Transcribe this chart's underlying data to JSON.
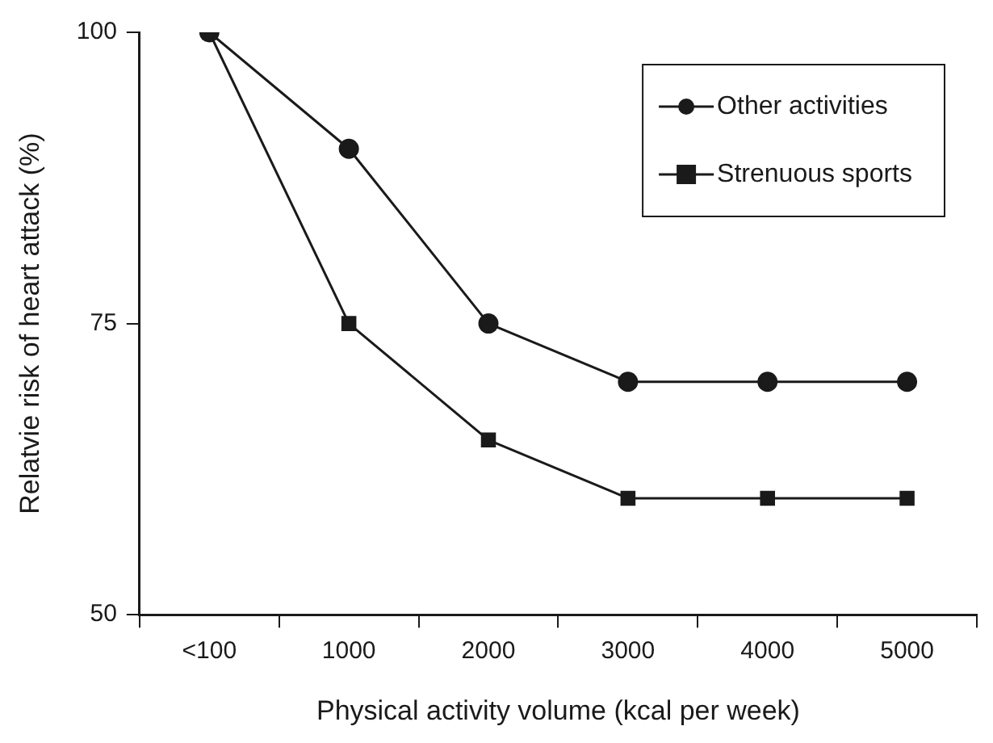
{
  "chart_data": {
    "type": "line",
    "xlabel": "Physical activity volume (kcal per week)",
    "ylabel": "Relatvie risk of heart attack (%)",
    "categories": [
      "<100",
      "1000",
      "2000",
      "3000",
      "4000",
      "5000"
    ],
    "series": [
      {
        "name": "Other activities",
        "color": "#1a1a1a",
        "marker": "circle",
        "values": [
          100,
          90,
          75,
          70,
          70,
          70
        ]
      },
      {
        "name": "Strenuous sports",
        "color": "#1a1a1a",
        "marker": "square",
        "values": [
          100,
          75,
          65,
          60,
          60,
          60
        ]
      }
    ],
    "ylim": [
      50,
      100
    ],
    "yticks": [
      50,
      75,
      100
    ],
    "grid": false,
    "legend": "top right",
    "line_style": "solid"
  }
}
